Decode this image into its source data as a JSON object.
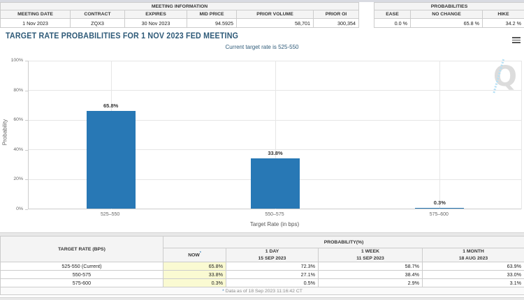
{
  "theme": {
    "bar_color": "#2878b5",
    "title_color": "#2e5a78",
    "highlight_yellow": "#fafad2",
    "grid_color": "#e6e6e6"
  },
  "meeting_information": {
    "title": "MEETING INFORMATION",
    "columns": [
      "MEETING DATE",
      "CONTRACT",
      "EXPIRES",
      "MID PRICE",
      "PRIOR VOLUME",
      "PRIOR OI"
    ],
    "values": [
      "1 Nov 2023",
      "ZQX3",
      "30 Nov 2023",
      "94.5925",
      "58,701",
      "300,354"
    ]
  },
  "probabilities_summary": {
    "title": "PROBABILITIES",
    "columns": [
      "EASE",
      "NO CHANGE",
      "HIKE"
    ],
    "values": [
      "0.0 %",
      "65.8 %",
      "34.2 %"
    ]
  },
  "chart": {
    "title": "TARGET RATE PROBABILITIES FOR 1 NOV 2023 FED MEETING",
    "subtitle": "Current target rate is 525-550",
    "watermark_letter": "Q"
  },
  "chart_data": {
    "type": "bar",
    "title": "TARGET RATE PROBABILITIES FOR 1 NOV 2023 FED MEETING",
    "subtitle": "Current target rate is 525-550",
    "categories": [
      "525–550",
      "550–575",
      "575–600"
    ],
    "values": [
      65.8,
      33.8,
      0.3
    ],
    "bar_labels": [
      "65.8%",
      "33.8%",
      "0.3%"
    ],
    "xlabel": "Target Rate (in bps)",
    "ylabel": "Probability",
    "ylim": [
      0,
      100
    ],
    "ytick_interval": 20,
    "ytick_labels": [
      "0%",
      "20%",
      "40%",
      "60%",
      "80%",
      "100%"
    ],
    "grid": true,
    "legend": false,
    "bar_color": "#2878b5"
  },
  "probability_table": {
    "target_rate_header": "TARGET RATE (BPS)",
    "group_header": "PROBABILITY(%)",
    "now_label": "NOW",
    "now_sup": "*",
    "period_columns": [
      {
        "label": "1 DAY",
        "date": "15 SEP 2023"
      },
      {
        "label": "1 WEEK",
        "date": "11 SEP 2023"
      },
      {
        "label": "1 MONTH",
        "date": "18 AUG 2023"
      }
    ],
    "rows": [
      {
        "target": "525-550 (Current)",
        "now": "65.8%",
        "day": "72.3%",
        "week": "58.7%",
        "month": "63.9%"
      },
      {
        "target": "550-575",
        "now": "33.8%",
        "day": "27.1%",
        "week": "38.4%",
        "month": "33.0%"
      },
      {
        "target": "575-600",
        "now": "0.3%",
        "day": "0.5%",
        "week": "2.9%",
        "month": "3.1%"
      }
    ],
    "footnote_star": "*",
    "footnote_text": " Data as of 18 Sep 2023 11:16:42 CT"
  }
}
